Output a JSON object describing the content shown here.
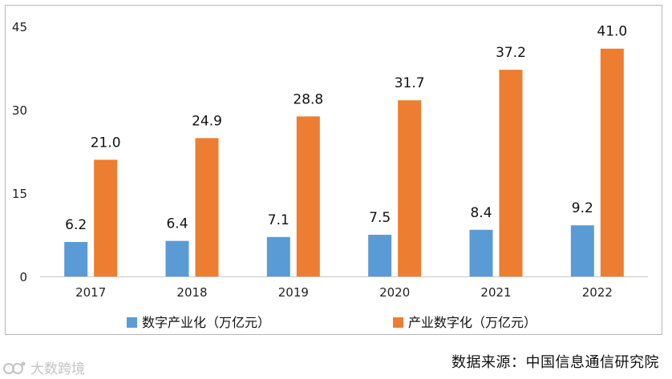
{
  "chart_data": {
    "type": "bar",
    "categories": [
      "2017",
      "2018",
      "2019",
      "2020",
      "2021",
      "2022"
    ],
    "series": [
      {
        "name": "数字产业化（万亿元）",
        "values": [
          6.2,
          6.4,
          7.1,
          7.5,
          8.4,
          9.2
        ],
        "color": "#5b9bd5"
      },
      {
        "name": "产业数字化（万亿元）",
        "values": [
          21.0,
          24.9,
          28.8,
          31.7,
          37.2,
          41.0
        ],
        "color": "#ed7d31"
      }
    ],
    "data_labels": [
      [
        "6.2",
        "6.4",
        "7.1",
        "7.5",
        "8.4",
        "9.2"
      ],
      [
        "21.0",
        "24.9",
        "28.8",
        "31.7",
        "37.2",
        "41.0"
      ]
    ],
    "y_ticks": [
      "0",
      "15",
      "30",
      "45"
    ],
    "ylim": [
      0,
      45
    ],
    "title": "",
    "xlabel": "",
    "ylabel": "",
    "grid": false,
    "legend": "bottom"
  },
  "source": "数据来源：中国信息通信研究院",
  "watermark": "大数跨境"
}
